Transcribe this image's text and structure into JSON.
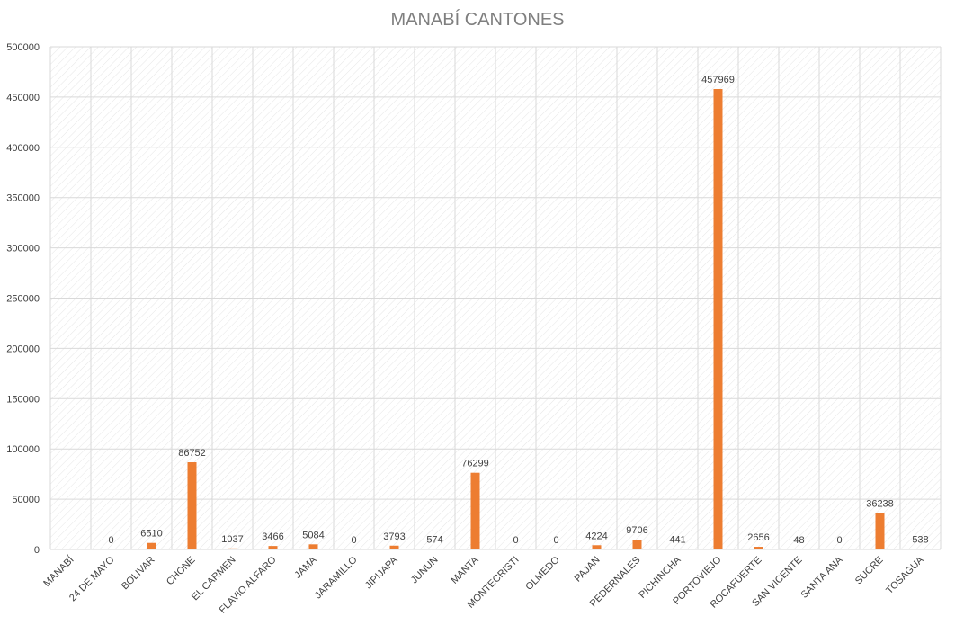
{
  "chart_data": {
    "type": "bar",
    "title": "MANABÍ CANTONES",
    "xlabel": "",
    "ylabel": "",
    "ylim": [
      0,
      500000
    ],
    "yticks": [
      0,
      50000,
      100000,
      150000,
      200000,
      250000,
      300000,
      350000,
      400000,
      450000,
      500000
    ],
    "grid": true,
    "legend": "none",
    "bar_color": "#ed7d31",
    "grid_color": "#d9d9d9",
    "categories": [
      "MANABÍ",
      "24 DE MAYO",
      "BOLIVAR",
      "CHONE",
      "EL CARMEN",
      "FLAVIO ALFARO",
      "JAMA",
      "JARAMILLO",
      "JIPIJAPA",
      "JUNUN",
      "MANTA",
      "MONTECRISTI",
      "OLMEDO",
      "PAJAN",
      "PEDERNALES",
      "PICHINCHA",
      "PORTOVIEJO",
      "ROCAFUERTE",
      "SAN VICENTE",
      "SANTA ANA",
      "SUCRE",
      "TOSAGUA"
    ],
    "values": [
      null,
      0,
      6510,
      86752,
      1037,
      3466,
      5084,
      0,
      3793,
      574,
      76299,
      0,
      0,
      4224,
      9706,
      441,
      457969,
      2656,
      48,
      0,
      36238,
      538
    ]
  }
}
